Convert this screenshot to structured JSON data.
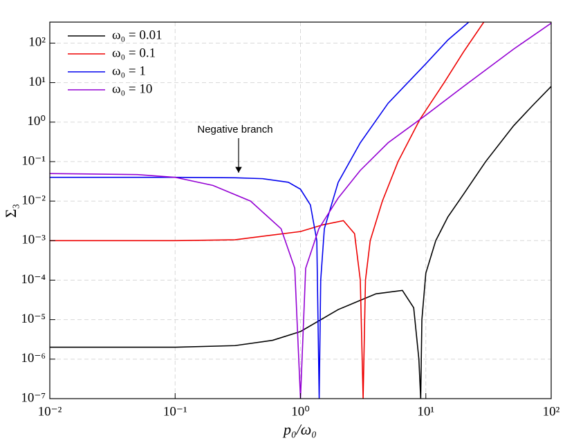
{
  "chart_data": {
    "type": "line",
    "xlabel": "p₀/ω₀",
    "ylabel": "Σ₃",
    "annotation": "Negative branch",
    "xscale": "log",
    "yscale": "log",
    "grid": true,
    "legend": "upper left",
    "xlim": [
      0.01,
      100
    ],
    "xticks": [
      {
        "value": 0.01,
        "label": "10⁻²"
      },
      {
        "value": 0.1,
        "label": "10⁻¹"
      },
      {
        "value": 1,
        "label": "10⁰"
      },
      {
        "value": 10,
        "label": "10¹"
      },
      {
        "value": 100,
        "label": "10²"
      }
    ],
    "ylim": [
      1e-07,
      340
    ],
    "yticks": [
      {
        "value": 1e-07,
        "label": "10⁻⁷"
      },
      {
        "value": 1e-06,
        "label": "10⁻⁶"
      },
      {
        "value": 1e-05,
        "label": "10⁻⁵"
      },
      {
        "value": 0.0001,
        "label": "10⁻⁴"
      },
      {
        "value": 0.001,
        "label": "10⁻³"
      },
      {
        "value": 0.01,
        "label": "10⁻²"
      },
      {
        "value": 0.1,
        "label": "10⁻¹"
      },
      {
        "value": 1,
        "label": "10⁰"
      },
      {
        "value": 10,
        "label": "10¹"
      },
      {
        "value": 100,
        "label": "10²"
      }
    ],
    "series": [
      {
        "name": "ω₀ = 0.01",
        "color": "#000000",
        "x": [
          0.01,
          0.1,
          0.3,
          0.6,
          1,
          2,
          4,
          6.5,
          8,
          8.8,
          9.1,
          9.3,
          10,
          12,
          15,
          20,
          30,
          50,
          70,
          100
        ],
        "values": [
          2e-06,
          2e-06,
          2.2e-06,
          3e-06,
          5e-06,
          1.8e-05,
          4.5e-05,
          5.5e-05,
          2e-05,
          1e-06,
          1e-07,
          1e-05,
          0.00015,
          0.001,
          0.004,
          0.015,
          0.1,
          0.8,
          2.5,
          8
        ]
      },
      {
        "name": "ω₀ = 0.1",
        "color": "#ee0000",
        "x": [
          0.01,
          0.1,
          0.3,
          1,
          1.5,
          2.2,
          2.7,
          3.0,
          3.16,
          3.3,
          3.6,
          4.5,
          6,
          9,
          14,
          20,
          29
        ],
        "values": [
          0.001,
          0.001,
          0.00105,
          0.0017,
          0.0025,
          0.0032,
          0.0015,
          0.0001,
          1e-07,
          0.0001,
          0.001,
          0.01,
          0.1,
          1.2,
          10,
          60,
          340
        ]
      },
      {
        "name": "ω₀ = 1",
        "color": "#0000ee",
        "x": [
          0.01,
          0.1,
          0.3,
          0.5,
          0.8,
          1.0,
          1.2,
          1.35,
          1.41,
          1.45,
          1.55,
          2,
          3,
          5,
          10,
          15,
          22
        ],
        "values": [
          0.04,
          0.04,
          0.039,
          0.037,
          0.03,
          0.02,
          0.008,
          0.001,
          1e-07,
          0.0001,
          0.002,
          0.03,
          0.3,
          3,
          30,
          120,
          340
        ]
      },
      {
        "name": "ω₀ = 10",
        "color": "#9400d3",
        "x": [
          0.01,
          0.05,
          0.1,
          0.2,
          0.4,
          0.7,
          0.9,
          1.0,
          1.1,
          1.4,
          2,
          3,
          5,
          10,
          20,
          50,
          100
        ],
        "values": [
          0.05,
          0.047,
          0.04,
          0.025,
          0.01,
          0.002,
          0.0002,
          1e-07,
          0.0002,
          0.002,
          0.012,
          0.06,
          0.3,
          1.5,
          8,
          70,
          320
        ]
      }
    ]
  }
}
